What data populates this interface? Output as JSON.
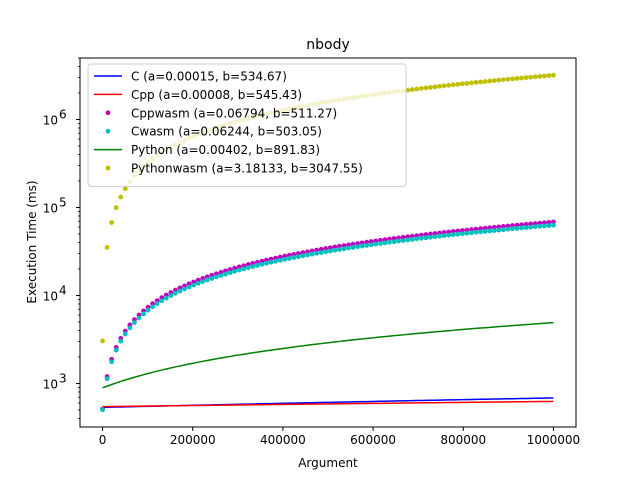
{
  "chart_data": {
    "type": "scatter",
    "title": "nbody",
    "xlabel": "Argument",
    "ylabel": "Execution Time (ms)",
    "xlim": [
      -50000,
      1050000
    ],
    "ylim": [
      320,
      5000000
    ],
    "yscale": "log",
    "x_ticks": [
      0,
      200000,
      400000,
      600000,
      800000,
      1000000
    ],
    "x_tick_labels": [
      "0",
      "200000",
      "400000",
      "600000",
      "800000",
      "1000000"
    ],
    "y_ticks": [
      1000,
      10000,
      100000,
      1000000
    ],
    "y_tick_labels": [
      {
        "base": "10",
        "exp": "3"
      },
      {
        "base": "10",
        "exp": "4"
      },
      {
        "base": "10",
        "exp": "5"
      },
      {
        "base": "10",
        "exp": "6"
      }
    ],
    "grid": false,
    "legend_position": "upper-left",
    "x_range": {
      "start": 0,
      "end": 1000000,
      "samples": 100
    },
    "series": [
      {
        "name": "C (a=0.00015, b=534.67)",
        "style": "line",
        "color": "#0000ff",
        "a": 0.00015,
        "b": 534.67
      },
      {
        "name": "Cpp (a=0.00008, b=545.43)",
        "style": "line",
        "color": "#ff0000",
        "a": 8e-05,
        "b": 545.43
      },
      {
        "name": "Cppwasm (a=0.06794, b=511.27)",
        "style": "points",
        "color": "#bf00bf",
        "a": 0.06794,
        "b": 511.27
      },
      {
        "name": "Cwasm (a=0.06244, b=503.05)",
        "style": "points",
        "color": "#00bfbf",
        "a": 0.06244,
        "b": 503.05
      },
      {
        "name": "Python (a=0.00402, b=891.83)",
        "style": "line",
        "color": "#008000",
        "a": 0.00402,
        "b": 891.83
      },
      {
        "name": "Pythonwasm (a=3.18133, b=3047.55)",
        "style": "points",
        "color": "#bfbf00",
        "a": 3.18133,
        "b": 3047.55
      }
    ]
  }
}
